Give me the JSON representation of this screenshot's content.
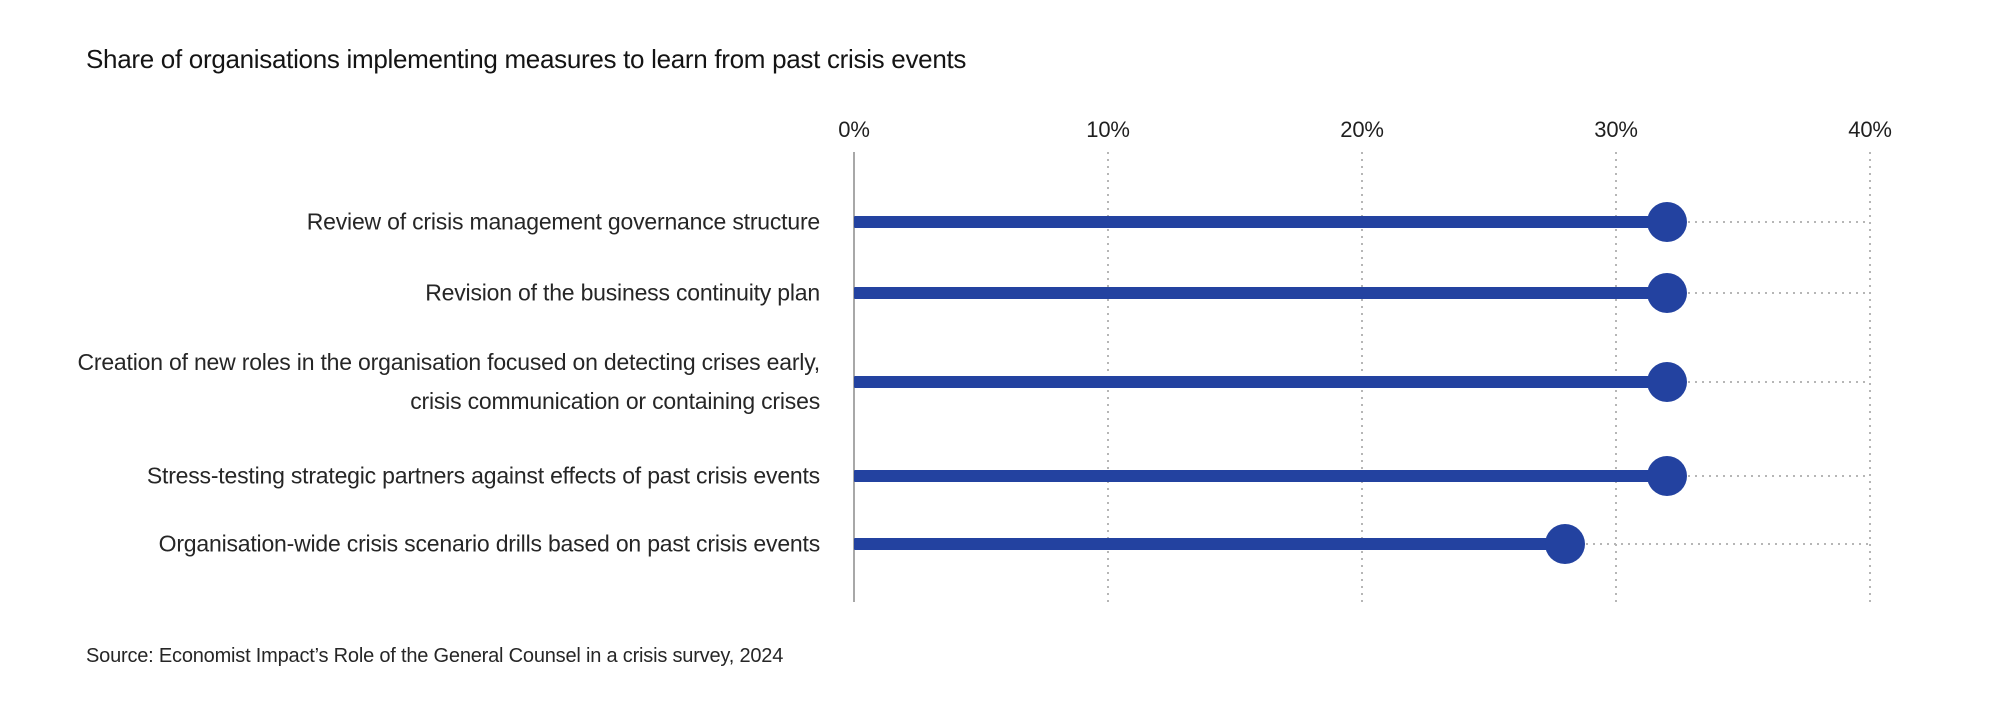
{
  "title": "Share of organisations implementing measures to learn from past crisis events",
  "source": "Source: Economist Impact’s Role of the General Counsel in a crisis survey, 2024",
  "colors": {
    "accent_blue": "#2342A0",
    "axis_line": "#a8a8a8",
    "gridline": "#b6b6b6",
    "title_text": "#141414",
    "label_text": "#262626"
  },
  "chart_data": {
    "type": "bar",
    "style": "lollipop",
    "orientation": "horizontal",
    "title": "Share of organisations implementing measures to learn from past crisis events",
    "categories": [
      "Review of crisis management governance structure",
      "Revision of the business continuity plan",
      "Creation of new roles in the organisation focused on detecting crises early, crisis communication or containing crises",
      "Stress-testing strategic partners against effects of past crisis events",
      "Organisation-wide crisis scenario drills based on past crisis events"
    ],
    "values": [
      32,
      32,
      32,
      32,
      28
    ],
    "unit": "%",
    "xlabel": "",
    "ylabel": "",
    "xlim": [
      0,
      40
    ],
    "x_ticks": [
      "0%",
      "10%",
      "20%",
      "30%",
      "40%"
    ],
    "x_tick_values": [
      0,
      10,
      20,
      30,
      40
    ],
    "grid": "dotted-vertical",
    "legend": "none",
    "source": "Source: Economist Impact’s Role of the General Counsel in a crisis survey, 2024"
  }
}
